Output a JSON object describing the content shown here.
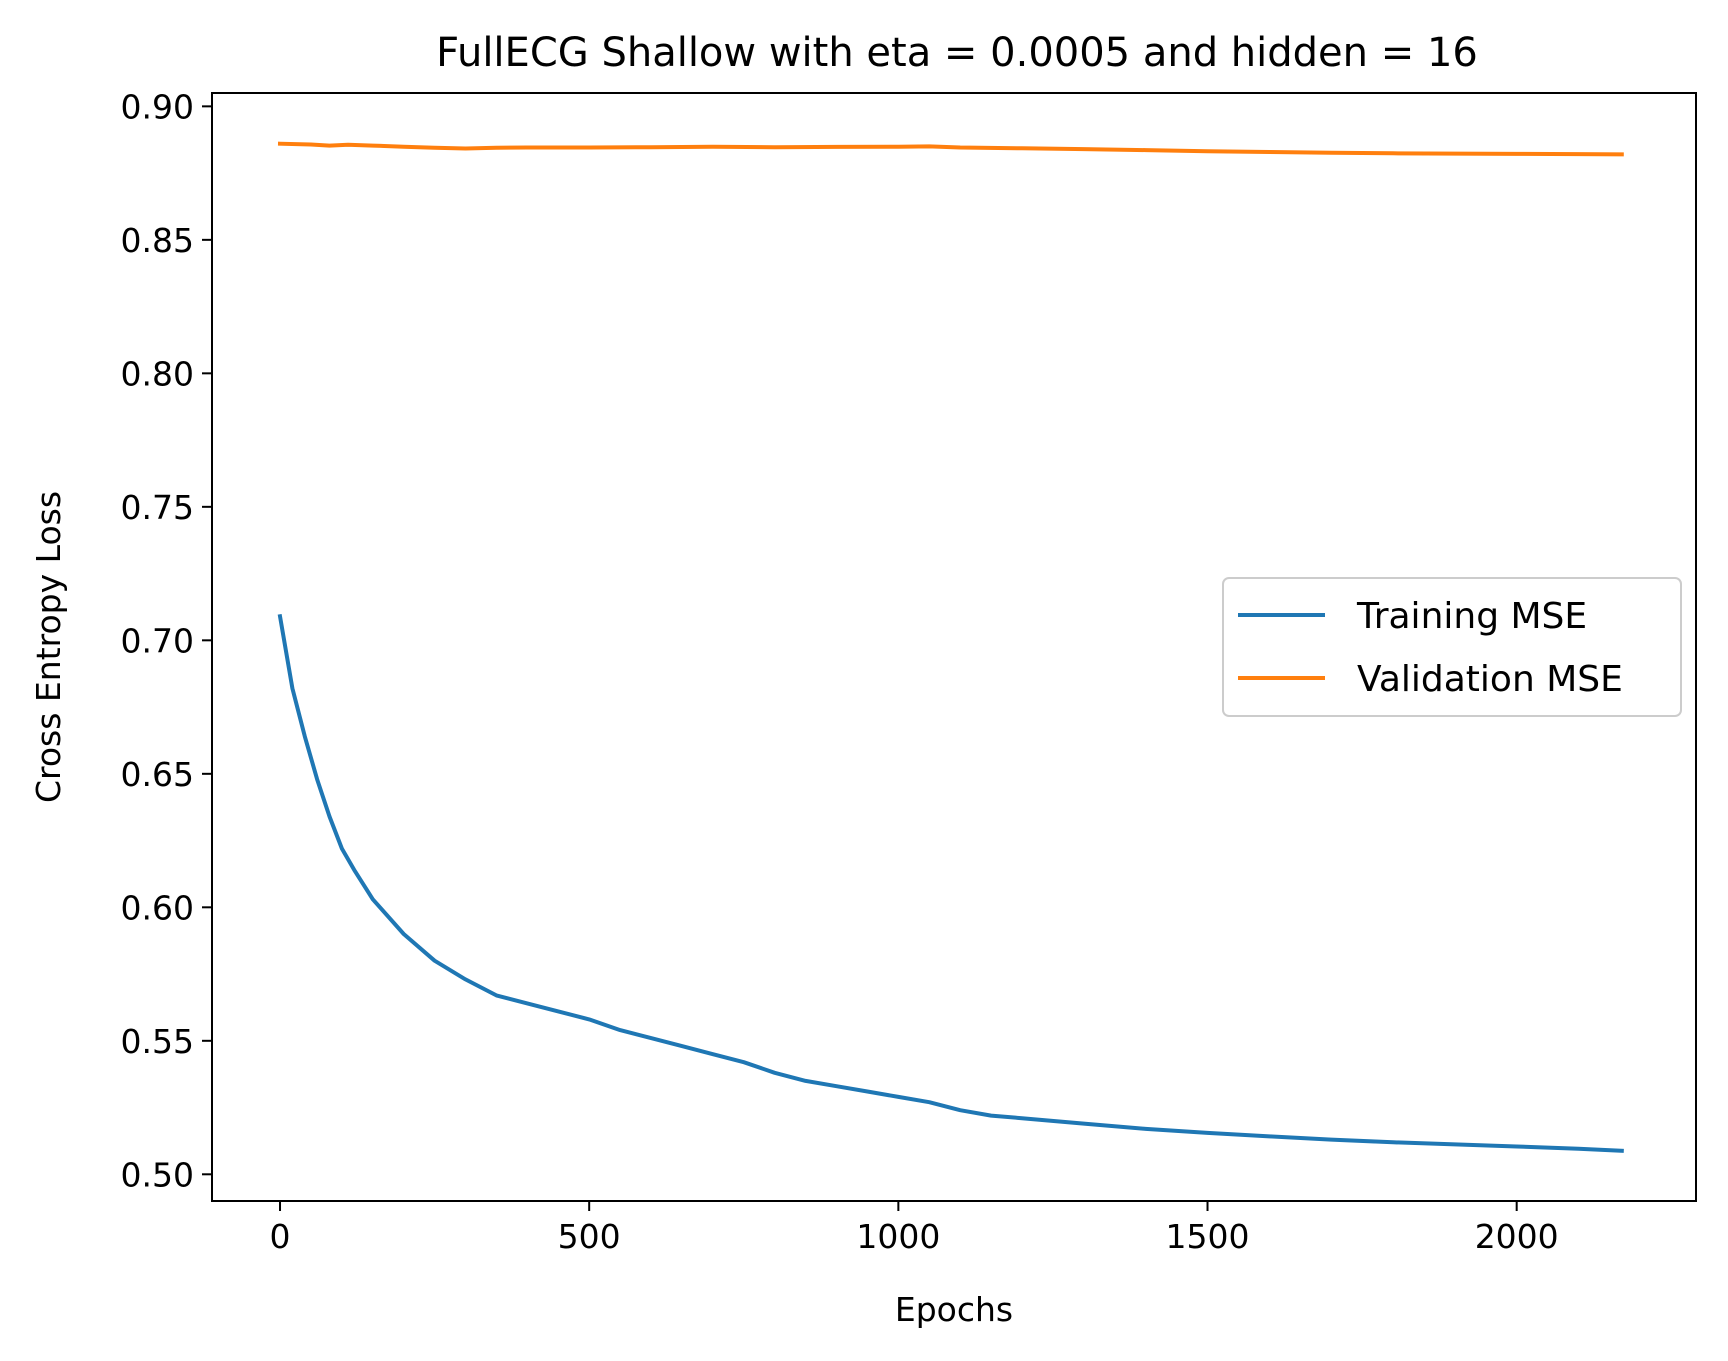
{
  "chart_data": {
    "type": "line",
    "title": "FullECG Shallow with eta = 0.0005 and hidden = 16",
    "xlabel": "Epochs",
    "ylabel": "Cross Entropy Loss",
    "xlim": [
      -110,
      2290
    ],
    "ylim": [
      0.49,
      0.905
    ],
    "x_ticks": [
      0,
      500,
      1000,
      1500,
      2000
    ],
    "x_tick_labels": [
      "0",
      "500",
      "1000",
      "1500",
      "2000"
    ],
    "y_ticks": [
      0.5,
      0.55,
      0.6,
      0.65,
      0.7,
      0.75,
      0.8,
      0.85,
      0.9
    ],
    "y_tick_labels": [
      "0.50",
      "0.55",
      "0.60",
      "0.65",
      "0.70",
      "0.75",
      "0.80",
      "0.85",
      "0.90"
    ],
    "grid": false,
    "legend_position": "center-right",
    "series": [
      {
        "name": "Training MSE",
        "color": "#1f77b4",
        "x": [
          0,
          20,
          40,
          60,
          80,
          100,
          120,
          150,
          200,
          250,
          300,
          350,
          400,
          450,
          500,
          550,
          600,
          650,
          700,
          750,
          800,
          850,
          900,
          950,
          1000,
          1050,
          1100,
          1150,
          1200,
          1300,
          1400,
          1500,
          1600,
          1700,
          1800,
          1900,
          2000,
          2100,
          2170
        ],
        "y": [
          0.709,
          0.682,
          0.664,
          0.648,
          0.634,
          0.622,
          0.614,
          0.603,
          0.59,
          0.58,
          0.573,
          0.567,
          0.564,
          0.561,
          0.558,
          0.554,
          0.551,
          0.548,
          0.545,
          0.542,
          0.538,
          0.535,
          0.533,
          0.531,
          0.529,
          0.527,
          0.524,
          0.522,
          0.521,
          0.519,
          0.517,
          0.5155,
          0.5142,
          0.513,
          0.512,
          0.5112,
          0.5104,
          0.5096,
          0.5088
        ]
      },
      {
        "name": "Validation MSE",
        "color": "#ff7f0e",
        "x": [
          0,
          50,
          80,
          110,
          150,
          200,
          250,
          300,
          350,
          400,
          500,
          600,
          700,
          800,
          900,
          1000,
          1050,
          1100,
          1200,
          1300,
          1400,
          1500,
          1600,
          1700,
          1800,
          1900,
          2000,
          2100,
          2170
        ],
        "y": [
          0.886,
          0.8857,
          0.8853,
          0.8856,
          0.8853,
          0.8849,
          0.8845,
          0.8842,
          0.8845,
          0.8846,
          0.8846,
          0.8847,
          0.8849,
          0.8847,
          0.8848,
          0.8849,
          0.885,
          0.8846,
          0.8843,
          0.884,
          0.8836,
          0.8832,
          0.8829,
          0.8826,
          0.8824,
          0.8823,
          0.8822,
          0.8821,
          0.882
        ]
      }
    ]
  }
}
